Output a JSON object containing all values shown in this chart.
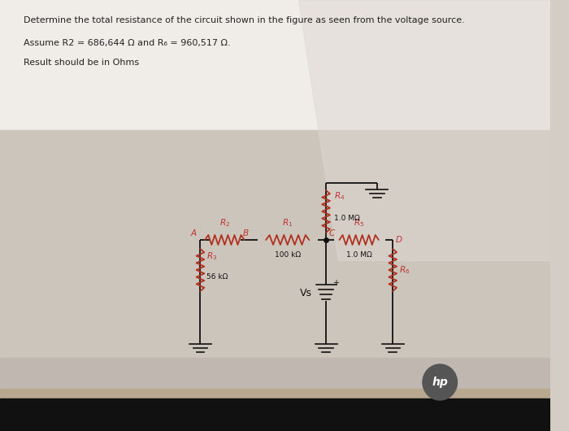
{
  "title_line1": "Determine the total resistance of the circuit shown in the figure as seen from the voltage source.",
  "title_line2": "Assume R2 = 686,644 Ω and R₆ = 960,517 Ω.",
  "title_line3": "Result should be in Ohms",
  "bg_top": "#e8e4e0",
  "bg_screen": "#d4cdc6",
  "bg_bottom_bar": "#1a1a1a",
  "bg_bright_band": "#f0ece8",
  "text_color": "#222222",
  "circuit_color": "#111111",
  "resistor_color": "#b03020",
  "node_color": "#c03030",
  "hp_circle": "#555555",
  "hp_text": "#ffffff"
}
